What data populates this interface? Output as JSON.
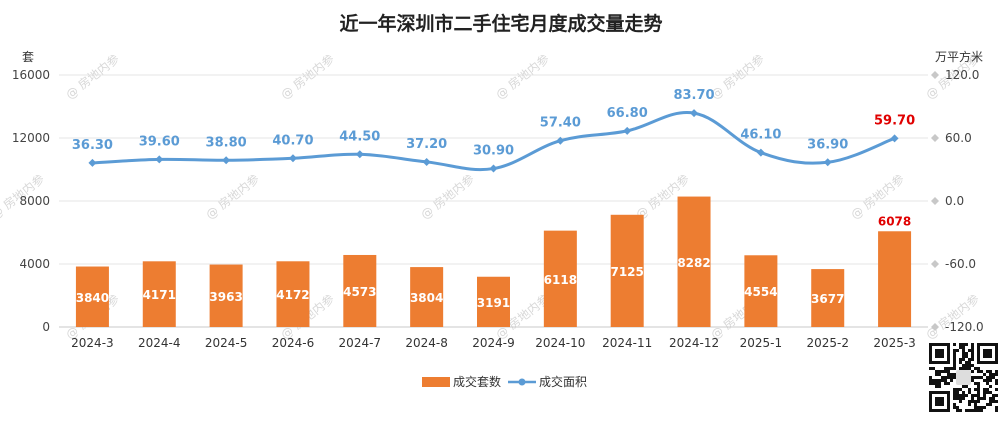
{
  "chart_data": {
    "type": "bar",
    "title": "近一年深圳市二手住宅月度成交量走势",
    "categories": [
      "2024-3",
      "2024-4",
      "2024-5",
      "2024-6",
      "2024-7",
      "2024-8",
      "2024-9",
      "2024-10",
      "2024-11",
      "2024-12",
      "2025-1",
      "2025-2",
      "2025-3"
    ],
    "left_axis": {
      "unit": "套",
      "ticks": [
        "0",
        "4000",
        "8000",
        "12000",
        "16000"
      ],
      "range": [
        0,
        16000
      ]
    },
    "right_axis": {
      "unit": "万平方米",
      "ticks": [
        "-120.0",
        "-60.0",
        "0.0",
        "60.0",
        "120.0"
      ],
      "range": [
        -120,
        120
      ]
    },
    "series": [
      {
        "name": "成交套数",
        "type": "bar",
        "axis": "left",
        "color": "#ed7d31",
        "values": [
          3840,
          4171,
          3963,
          4172,
          4573,
          3804,
          3191,
          6118,
          7125,
          8282,
          4554,
          3677,
          6078
        ],
        "labels": [
          "3840",
          "4171",
          "3963",
          "4172",
          "4573",
          "3804",
          "3191",
          "6118",
          "7125",
          "8282",
          "4554",
          "3677",
          "6078"
        ]
      },
      {
        "name": "成交面积",
        "type": "line",
        "axis": "right",
        "color": "#5b9bd5",
        "values": [
          36.3,
          39.6,
          38.8,
          40.7,
          44.5,
          37.2,
          30.9,
          57.4,
          66.8,
          83.7,
          46.1,
          36.9,
          59.7
        ],
        "labels": [
          "36.30",
          "39.60",
          "38.80",
          "40.70",
          "44.50",
          "37.20",
          "30.90",
          "57.40",
          "66.80",
          "83.70",
          "46.10",
          "36.90",
          "59.70"
        ]
      }
    ],
    "highlight_color": "#e00000",
    "grid": true,
    "legend_position": "bottom"
  },
  "watermark_text": "@ 房地内参",
  "qr_icon": "qr-code-icon"
}
